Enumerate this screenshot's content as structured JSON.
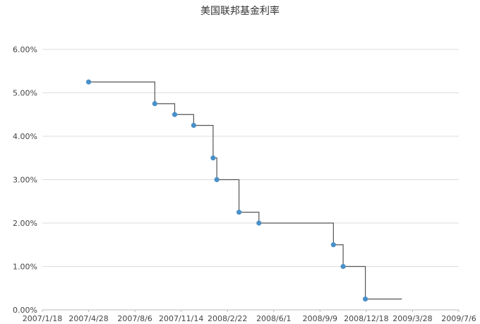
{
  "chart_data": {
    "type": "line",
    "title": "美国联邦基金利率",
    "xlabel": "",
    "ylabel": "",
    "step": "after",
    "x_ticks": [
      "2007/1/18",
      "2007/4/28",
      "2007/8/6",
      "2007/11/14",
      "2008/2/22",
      "2008/6/1",
      "2008/9/9",
      "2008/12/18",
      "2009/3/28",
      "2009/7/6"
    ],
    "x_range": [
      "2007/1/18",
      "2009/7/6"
    ],
    "y_ticks": [
      "0.00%",
      "1.00%",
      "2.00%",
      "3.00%",
      "4.00%",
      "5.00%",
      "6.00%"
    ],
    "ylim": [
      0,
      6
    ],
    "grid": "horizontal",
    "legend": "none",
    "series": [
      {
        "x": [
          "2007/4/28",
          "2007/9/18",
          "2007/10/31",
          "2007/12/11",
          "2008/1/22",
          "2008/1/30",
          "2008/3/18",
          "2008/4/30",
          "2008/10/8",
          "2008/10/29",
          "2008/12/16"
        ],
        "values": [
          5.25,
          4.75,
          4.5,
          4.25,
          3.5,
          3.0,
          2.25,
          2.0,
          1.5,
          1.0,
          0.25
        ],
        "end_x": "2009/3/5"
      }
    ],
    "colors": {
      "line": "#555555",
      "marker": "#4a90c8",
      "grid": "#dddddd",
      "axis": "#bbbbbb",
      "tick_text": "#444444"
    }
  }
}
